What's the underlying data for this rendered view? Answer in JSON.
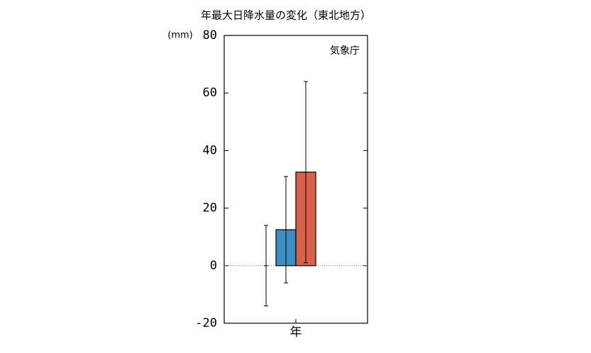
{
  "chart_data": {
    "type": "bar",
    "title": "年最大日降水量の変化（東北地方）",
    "y_label": "(mm)",
    "annotation": "気象庁",
    "categories": [
      "年"
    ],
    "series": [
      {
        "values": [
          0
        ],
        "errors": [
          14
        ]
      },
      {
        "color": "#3a8fc4",
        "values": [
          12.5
        ],
        "errors": [
          18.5
        ]
      },
      {
        "color": "#d9604a",
        "values": [
          32.5
        ],
        "errors": [
          31.5
        ]
      }
    ],
    "ylim": [
      -20,
      80
    ],
    "yticks": [
      -20,
      0,
      20,
      40,
      60,
      80
    ],
    "zero_line": true
  }
}
